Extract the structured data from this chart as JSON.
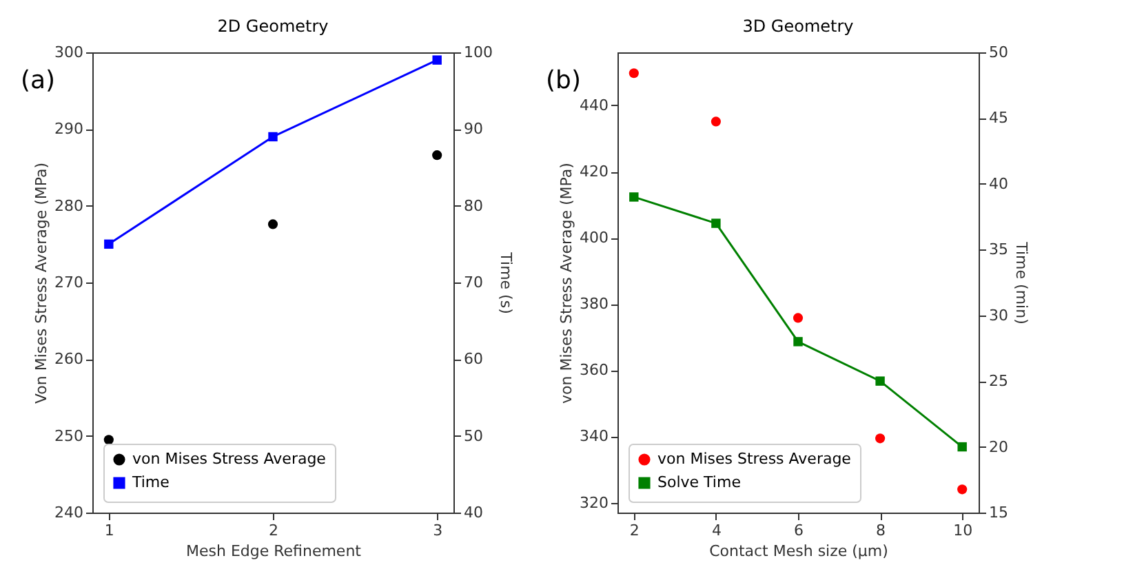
{
  "chart_data": [
    {
      "type": "scatter",
      "title": "2D Geometry",
      "xlabel": "Mesh Edge Refinement",
      "ylabel": "Von Mises Stress Average (MPa)",
      "y2label": "Time (s)",
      "annotations": [
        "(a)"
      ],
      "x": [
        1,
        2,
        3
      ],
      "xlim": [
        0.9,
        3.1
      ],
      "xticks": [
        1,
        2,
        3
      ],
      "ylim": [
        240,
        300
      ],
      "yticks": [
        240,
        250,
        260,
        270,
        280,
        290,
        300
      ],
      "y2lim": [
        40,
        100
      ],
      "y2ticks": [
        40,
        50,
        60,
        70,
        80,
        90,
        100
      ],
      "grid": false,
      "legend": "bottom left",
      "series": [
        {
          "name": "von Mises Stress Average",
          "marker": "circle",
          "color": "#000000",
          "values": [
            249.5,
            277.6,
            286.6
          ]
        },
        {
          "name": "Time",
          "type": "line",
          "marker": "square",
          "line_style": "solid",
          "axis": "y2",
          "color": "#0000ff",
          "values": [
            75,
            89,
            99
          ]
        }
      ]
    },
    {
      "type": "scatter",
      "title": "3D Geometry",
      "xlabel": "Contact Mesh size (µm)",
      "ylabel": "von Mises Stress Average (MPa)",
      "y2label": "Time (min)",
      "annotations": [
        "(b)"
      ],
      "x": [
        2,
        4,
        6,
        8,
        10
      ],
      "xlim": [
        1.6,
        10.4
      ],
      "xticks": [
        2,
        4,
        6,
        8,
        10
      ],
      "ylim": [
        317,
        456
      ],
      "yticks": [
        320,
        340,
        360,
        380,
        400,
        420,
        440
      ],
      "y2lim": [
        15,
        50
      ],
      "y2ticks": [
        15,
        20,
        25,
        30,
        35,
        40,
        45,
        50
      ],
      "grid": false,
      "legend": "bottom left",
      "series": [
        {
          "name": "von Mises Stress Average",
          "marker": "circle",
          "color": "#ff0000",
          "values": [
            449.7,
            435.1,
            375.8,
            339.4,
            324
          ]
        },
        {
          "name": "Solve Time",
          "type": "line",
          "marker": "square",
          "line_style": "solid",
          "axis": "y2",
          "color": "#008000",
          "values": [
            39,
            37,
            28,
            25,
            20
          ]
        }
      ]
    }
  ]
}
